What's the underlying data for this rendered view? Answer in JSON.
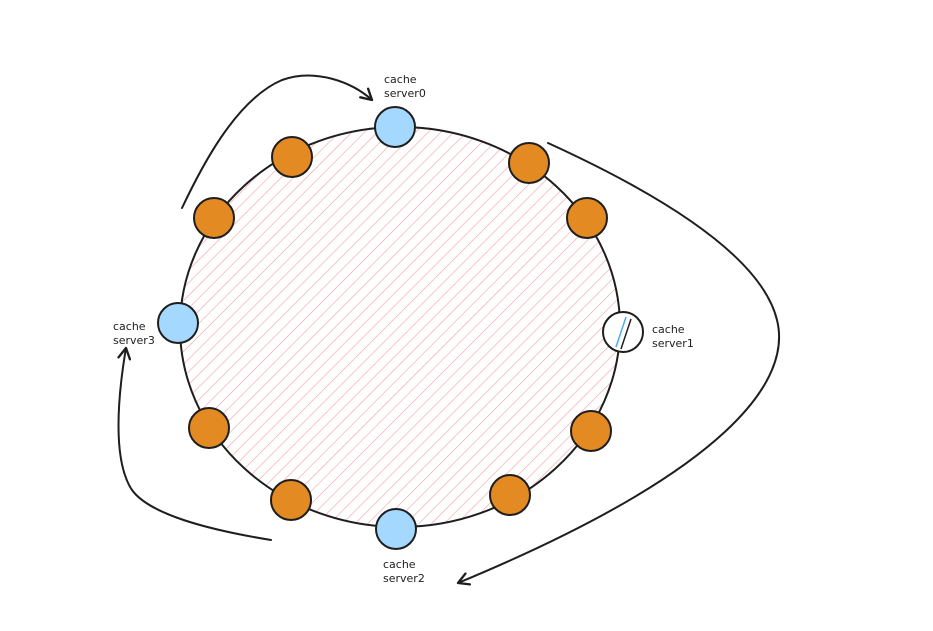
{
  "diagram": {
    "colors": {
      "background": "#ffffff",
      "stroke": "#1e1e1e",
      "ring_hatch": "#f2a0a8",
      "server_fill": "#a5d8ff",
      "server_removed_fill": "#ffffff",
      "server_removed_hatch": "#4dabf7",
      "key_fill": "#e48a23"
    },
    "servers": [
      {
        "id": "server0",
        "line1": "cache",
        "line2": "server0",
        "state": "active"
      },
      {
        "id": "server1",
        "line1": "cache",
        "line2": "server1",
        "state": "removed"
      },
      {
        "id": "server2",
        "line1": "cache",
        "line2": "server2",
        "state": "active"
      },
      {
        "id": "server3",
        "line1": "cache",
        "line2": "server3",
        "state": "active"
      }
    ],
    "keys": [
      {
        "id": "key-1"
      },
      {
        "id": "key-2"
      },
      {
        "id": "key-3"
      },
      {
        "id": "key-4"
      },
      {
        "id": "key-5"
      },
      {
        "id": "key-6"
      },
      {
        "id": "key-7"
      },
      {
        "id": "key-8"
      },
      {
        "id": "key-9"
      },
      {
        "id": "key-10"
      }
    ],
    "arrows": [
      {
        "id": "arrow-to-server0",
        "target": "server0"
      },
      {
        "id": "arrow-to-server2",
        "target": "server2"
      },
      {
        "id": "arrow-to-server3",
        "target": "server3"
      }
    ]
  }
}
